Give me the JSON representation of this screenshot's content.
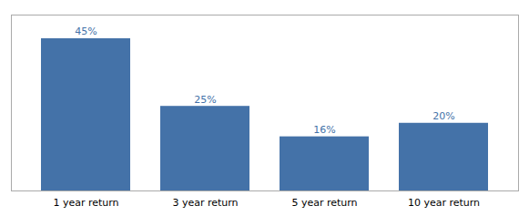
{
  "chart_data": {
    "type": "bar",
    "categories": [
      "1 year return",
      "3 year return",
      "5 year return",
      "10 year return"
    ],
    "values": [
      45,
      25,
      16,
      20
    ],
    "value_labels": [
      "45%",
      "25%",
      "16%",
      "20%"
    ],
    "color": "#4472a8",
    "ylim": [
      0,
      52
    ],
    "data_labels": true,
    "tick_labels": "x",
    "grid": false
  }
}
